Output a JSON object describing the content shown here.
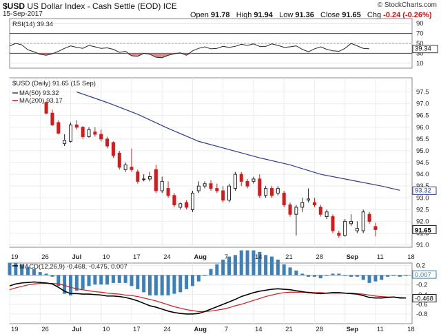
{
  "header": {
    "symbol": "$USD",
    "name": "US Dollar Index - Cash Settle (EOD)",
    "exchange": "ICE",
    "date": "15-Sep-2017",
    "open_label": "Open",
    "open": "91.78",
    "high_label": "High",
    "high": "91.94",
    "low_label": "Low",
    "low": "91.36",
    "close_label": "Close",
    "close": "91.65",
    "chg_label": "Chg",
    "chg": "-0.24 (-0.26%)",
    "brand": "© StockCharts.com"
  },
  "chart_data": [
    {
      "type": "line",
      "panel": "rsi",
      "legend": "RSI(14) 39.34",
      "ylim": [
        0,
        100
      ],
      "yticks": [
        "90",
        "70",
        "50",
        "30",
        "10"
      ],
      "levels": [
        70,
        30
      ],
      "last_value": "39.34",
      "values": [
        45,
        50,
        47,
        37,
        33,
        28,
        26,
        29,
        34,
        40,
        45,
        42,
        40,
        46,
        43,
        40,
        41,
        38,
        32,
        34,
        25,
        24,
        30,
        28,
        22,
        21,
        26,
        29,
        31,
        26,
        35,
        40,
        43,
        39,
        40,
        44,
        42,
        44,
        48,
        46,
        49,
        44,
        44,
        49,
        46,
        42,
        43,
        45,
        38,
        33,
        39,
        43,
        38,
        35,
        34,
        40,
        50,
        45,
        40,
        39
      ]
    },
    {
      "type": "candlestick",
      "panel": "price",
      "legend": "$USD (Daily) 91.65 (15 Sep)",
      "ylim": [
        90.9,
        98.1
      ],
      "yticks": [
        "97.5",
        "97.0",
        "96.5",
        "96.0",
        "95.5",
        "95.0",
        "94.5",
        "94.0",
        "93.5",
        "93.0",
        "92.5",
        "92.0",
        "91.5",
        "91.0"
      ],
      "price_tag": "91.65",
      "ma_tag": "93.32",
      "x_labels": [
        "19",
        "26",
        "Jul",
        "10",
        "17",
        "24",
        "Aug",
        "7",
        "14",
        "21",
        "28",
        "Sep",
        "11",
        "18"
      ],
      "x_label_index": [
        0,
        5,
        10,
        15,
        20,
        25,
        30,
        35,
        40,
        45,
        50,
        55,
        60,
        65
      ],
      "start_index": 6,
      "ohlc": [
        [
          97.05,
          97.1,
          96.55,
          96.6
        ],
        [
          96.6,
          96.75,
          96.05,
          96.1
        ],
        [
          96.2,
          96.3,
          95.7,
          95.75
        ],
        [
          95.3,
          95.7,
          95.2,
          95.45
        ],
        [
          95.4,
          96.2,
          95.35,
          96.1
        ],
        [
          96.1,
          96.3,
          95.9,
          96.0
        ],
        [
          96.0,
          96.05,
          95.5,
          95.6
        ],
        [
          95.6,
          96.0,
          95.55,
          95.9
        ],
        [
          95.8,
          96.0,
          95.6,
          95.7
        ],
        [
          95.7,
          95.9,
          95.4,
          95.5
        ],
        [
          95.5,
          95.6,
          95.1,
          95.2
        ],
        [
          95.35,
          95.4,
          94.7,
          94.8
        ],
        [
          94.9,
          95.0,
          94.2,
          94.3
        ],
        [
          94.2,
          94.5,
          94.1,
          94.4
        ],
        [
          94.3,
          95.1,
          94.1,
          94.2
        ],
        [
          94.1,
          94.2,
          93.6,
          93.7
        ],
        [
          93.8,
          94.0,
          93.7,
          93.8
        ],
        [
          93.8,
          94.1,
          93.7,
          93.9
        ],
        [
          94.2,
          94.4,
          93.2,
          93.3
        ],
        [
          93.3,
          93.9,
          93.2,
          93.7
        ],
        [
          93.4,
          93.7,
          93.0,
          93.1
        ],
        [
          93.1,
          93.2,
          92.6,
          92.7
        ],
        [
          92.6,
          92.8,
          92.5,
          92.75
        ],
        [
          92.8,
          92.9,
          92.5,
          92.6
        ],
        [
          92.5,
          93.3,
          92.4,
          93.2
        ],
        [
          93.3,
          93.7,
          93.2,
          93.5
        ],
        [
          93.5,
          93.7,
          93.4,
          93.6
        ],
        [
          93.6,
          93.75,
          93.3,
          93.4
        ],
        [
          93.4,
          93.6,
          93.2,
          93.3
        ],
        [
          93.3,
          93.5,
          92.8,
          92.9
        ],
        [
          92.9,
          93.6,
          92.8,
          93.5
        ],
        [
          93.4,
          94.1,
          93.3,
          94.0
        ],
        [
          94.0,
          94.1,
          93.5,
          93.7
        ],
        [
          93.7,
          93.8,
          93.4,
          93.5
        ],
        [
          93.7,
          93.9,
          93.6,
          93.8
        ],
        [
          93.8,
          94.0,
          93.0,
          93.1
        ],
        [
          93.1,
          93.5,
          93.0,
          93.4
        ],
        [
          93.4,
          93.5,
          93.0,
          93.1
        ],
        [
          93.2,
          93.5,
          93.1,
          93.4
        ],
        [
          93.2,
          93.3,
          92.6,
          92.7
        ],
        [
          92.7,
          92.8,
          92.2,
          92.3
        ],
        [
          92.3,
          92.7,
          91.4,
          92.6
        ],
        [
          92.6,
          93.0,
          92.4,
          92.8
        ],
        [
          92.9,
          93.4,
          92.8,
          92.95
        ],
        [
          92.8,
          93.0,
          92.6,
          92.7
        ],
        [
          92.6,
          92.7,
          92.2,
          92.3
        ],
        [
          92.2,
          92.5,
          92.1,
          92.4
        ],
        [
          92.2,
          92.3,
          91.5,
          91.6
        ],
        [
          91.5,
          91.6,
          91.3,
          91.4
        ],
        [
          91.4,
          92.1,
          91.35,
          92.0
        ],
        [
          91.9,
          92.3,
          91.8,
          92.0
        ],
        [
          91.6,
          92.0,
          91.5,
          91.7
        ],
        [
          91.6,
          92.5,
          91.5,
          92.4
        ],
        [
          92.3,
          92.4,
          91.9,
          92.0
        ],
        [
          91.78,
          91.94,
          91.36,
          91.65
        ]
      ],
      "series": [
        {
          "name": "MA(50) 93.32",
          "color": "#2b3a8f",
          "points": [
            [
              11,
              97.5
            ],
            [
              16,
              97.05
            ],
            [
              21,
              96.55
            ],
            [
              26,
              95.95
            ],
            [
              31,
              95.4
            ],
            [
              36,
              95.05
            ],
            [
              41,
              94.7
            ],
            [
              46,
              94.4
            ],
            [
              51,
              94.0
            ],
            [
              56,
              93.75
            ],
            [
              61,
              93.5
            ],
            [
              64,
              93.32
            ]
          ]
        },
        {
          "name": "MA(200) 93.17",
          "color": "#d01818",
          "points": []
        }
      ]
    },
    {
      "type": "line",
      "panel": "macd",
      "legend": "MACD(12,26,9) -0.468, -0.475, 0.007",
      "ylim": [
        -1.0,
        0.25
      ],
      "yticks": [
        "0.2",
        "0.0",
        "-0.2",
        "-0.4",
        "-0.6",
        "-0.8"
      ],
      "macd_tag": "-0.468",
      "hist_tag": "0.007",
      "series": [
        {
          "name": "MACD",
          "color": "#000000",
          "values": [
            -0.22,
            -0.18,
            -0.16,
            -0.15,
            -0.14,
            -0.15,
            -0.16,
            -0.18,
            -0.25,
            -0.33,
            -0.38,
            -0.38,
            -0.39,
            -0.39,
            -0.4,
            -0.41,
            -0.43,
            -0.43,
            -0.44,
            -0.46,
            -0.49,
            -0.53,
            -0.58,
            -0.63,
            -0.66,
            -0.7,
            -0.74,
            -0.77,
            -0.79,
            -0.8,
            -0.8,
            -0.79,
            -0.75,
            -0.7,
            -0.65,
            -0.6,
            -0.55,
            -0.5,
            -0.44,
            -0.4,
            -0.36,
            -0.33,
            -0.31,
            -0.29,
            -0.28,
            -0.29,
            -0.3,
            -0.32,
            -0.34,
            -0.36,
            -0.37,
            -0.38,
            -0.37,
            -0.36,
            -0.36,
            -0.37,
            -0.38,
            -0.39,
            -0.42,
            -0.46,
            -0.47,
            -0.47,
            -0.46,
            -0.45,
            -0.47,
            -0.47
          ]
        },
        {
          "name": "Signal",
          "color": "#d01818",
          "values": [
            -0.3,
            -0.26,
            -0.23,
            -0.2,
            -0.18,
            -0.17,
            -0.17,
            -0.17,
            -0.18,
            -0.21,
            -0.25,
            -0.28,
            -0.3,
            -0.32,
            -0.34,
            -0.35,
            -0.37,
            -0.38,
            -0.39,
            -0.41,
            -0.42,
            -0.44,
            -0.47,
            -0.5,
            -0.53,
            -0.57,
            -0.61,
            -0.65,
            -0.68,
            -0.71,
            -0.73,
            -0.75,
            -0.75,
            -0.74,
            -0.72,
            -0.7,
            -0.67,
            -0.63,
            -0.6,
            -0.56,
            -0.52,
            -0.48,
            -0.44,
            -0.41,
            -0.38,
            -0.36,
            -0.35,
            -0.35,
            -0.35,
            -0.35,
            -0.36,
            -0.36,
            -0.37,
            -0.37,
            -0.37,
            -0.37,
            -0.37,
            -0.38,
            -0.39,
            -0.41,
            -0.43,
            -0.44,
            -0.45,
            -0.45,
            -0.46,
            -0.47
          ]
        }
      ]
    }
  ]
}
